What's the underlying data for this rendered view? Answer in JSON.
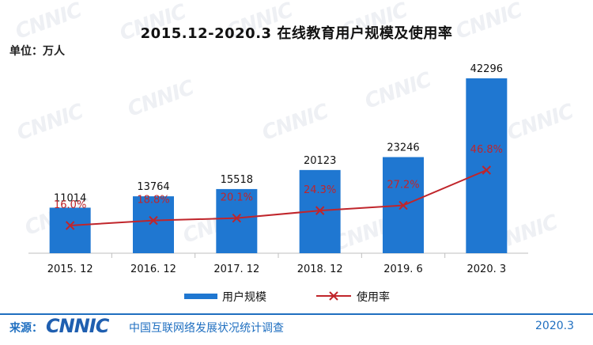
{
  "title": "2015.12-2020.3 在线教育用户规模及使用率",
  "unit_label": "单位：万人",
  "watermark": "CNNIC",
  "colors": {
    "bar": "#1f77d1",
    "line": "#c0252b",
    "rate_text": "#c0252b",
    "brand": "#1f6fc0"
  },
  "chart_data": {
    "type": "bar",
    "categories": [
      "2015. 12",
      "2016. 12",
      "2017. 12",
      "2018. 12",
      "2019. 6",
      "2020. 3"
    ],
    "series": [
      {
        "name": "用户规模",
        "type": "bar",
        "values": [
          11014,
          13764,
          15518,
          20123,
          23246,
          42296
        ],
        "labels": [
          "11014",
          "13764",
          "15518",
          "20123",
          "23246",
          "42296"
        ]
      },
      {
        "name": "使用率",
        "type": "line",
        "values": [
          16.0,
          18.8,
          20.1,
          24.3,
          27.2,
          46.8
        ],
        "labels": [
          "16.0%",
          "18.8%",
          "20.1%",
          "24.3%",
          "27.2%",
          "46.8%"
        ]
      }
    ],
    "ylim": [
      0,
      45000
    ],
    "rate_ylim": [
      0,
      60
    ],
    "grid": false,
    "legend_position": "bottom"
  },
  "footer": {
    "source_label": "来源：",
    "logo_text": "CNNIC",
    "org_name": "中国互联网络发展状况统计调查",
    "date": "2020.3"
  }
}
